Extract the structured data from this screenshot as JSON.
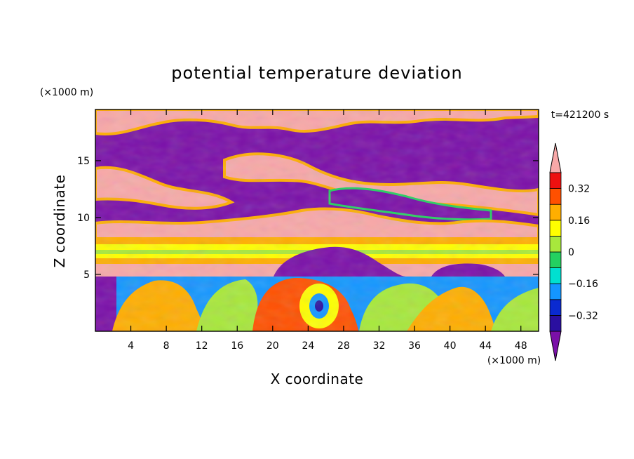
{
  "chart_data": {
    "type": "heatmap",
    "title": "potential temperature deviation",
    "xlabel": "X coordinate",
    "ylabel": "Z coordinate",
    "x_unit": "(×1000 m)",
    "y_unit": "(×1000 m)",
    "time_label": "t=421200 s",
    "xlim": [
      0,
      50
    ],
    "ylim": [
      0,
      19.5
    ],
    "x_ticks": [
      4,
      8,
      12,
      16,
      20,
      24,
      28,
      32,
      36,
      40,
      44,
      48
    ],
    "y_ticks": [
      5,
      10,
      15
    ],
    "colorbar": {
      "levels": [
        -0.4,
        -0.32,
        -0.24,
        -0.16,
        -0.08,
        0,
        0.08,
        0.16,
        0.24,
        0.32,
        0.4
      ],
      "labels": [
        "0.32",
        "0.16",
        "0",
        "−0.16",
        "−0.32"
      ],
      "label_values": [
        0.32,
        0.16,
        0,
        -0.16,
        -0.32
      ],
      "colors": [
        "#7a10a8",
        "#2a0fa0",
        "#0a2ad0",
        "#1496ff",
        "#00e0d0",
        "#24d060",
        "#a8e83c",
        "#ffff00",
        "#ffae00",
        "#ff5000",
        "#ee1010",
        "#f8a8a8"
      ],
      "extend": "both"
    },
    "grid": false
  }
}
